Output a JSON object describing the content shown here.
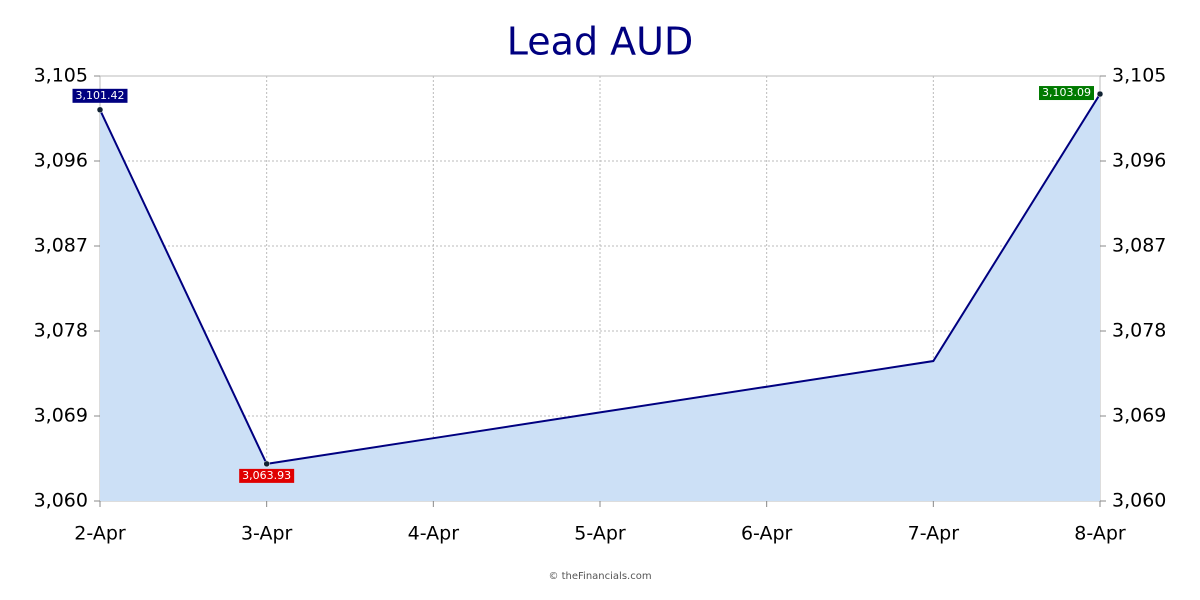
{
  "chart_data": {
    "type": "area",
    "title": "Lead AUD",
    "categories": [
      "2-Apr",
      "3-Apr",
      "4-Apr",
      "5-Apr",
      "6-Apr",
      "7-Apr",
      "8-Apr"
    ],
    "values": [
      3101.42,
      3063.93,
      3066.65,
      3069.38,
      3072.1,
      3074.82,
      3103.09
    ],
    "value_labels": [
      "3,101.42",
      "3,063.93",
      null,
      null,
      null,
      null,
      "3,103.09"
    ],
    "label_colors": [
      "#000080",
      "#e00000",
      null,
      null,
      null,
      null,
      "#007a00"
    ],
    "color": "#000080",
    "fill_color": "#cce0f6",
    "ylim": [
      3060,
      3105
    ],
    "yticks": [
      {
        "value": 3060,
        "label": "3,060"
      },
      {
        "value": 3069,
        "label": "3,069"
      },
      {
        "value": 3078,
        "label": "3,078"
      },
      {
        "value": 3087,
        "label": "3,087"
      },
      {
        "value": 3096,
        "label": "3,096"
      },
      {
        "value": 3105,
        "label": "3,105"
      }
    ],
    "grid": true,
    "footer": "© theFinancials.com"
  }
}
